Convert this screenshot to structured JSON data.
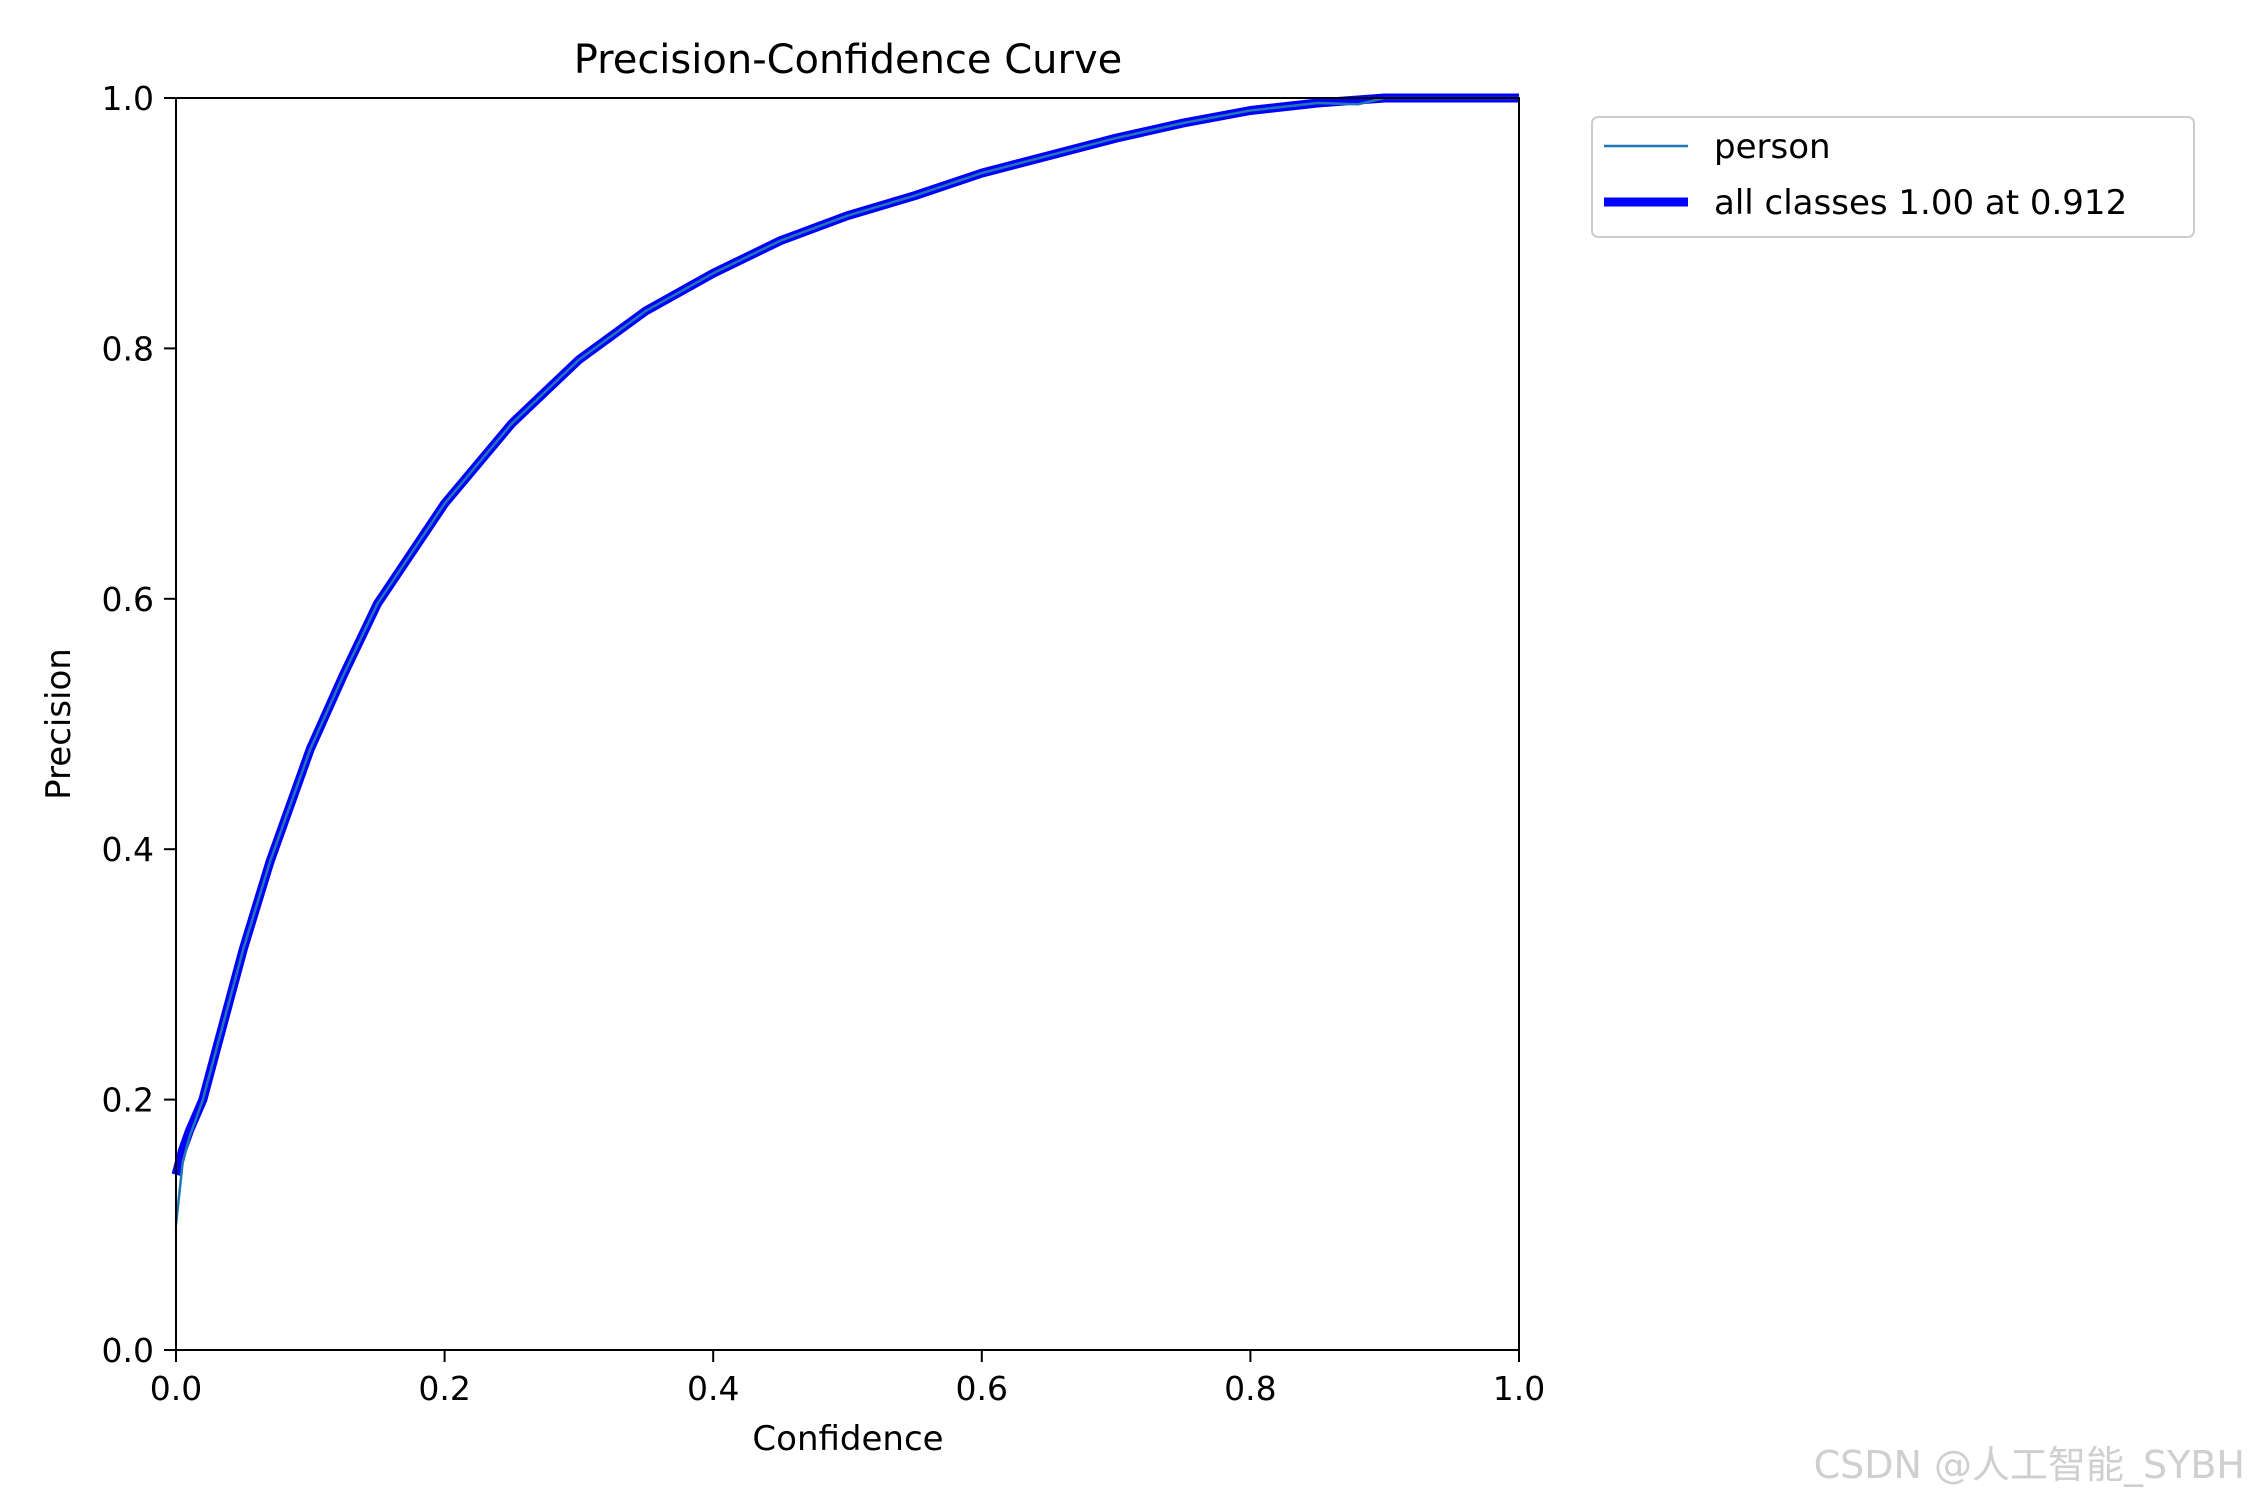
{
  "chart_data": {
    "type": "line",
    "title": "Precision-Confidence Curve",
    "xlabel": "Confidence",
    "ylabel": "Precision",
    "xlim": [
      0.0,
      1.0
    ],
    "ylim": [
      0.0,
      1.0
    ],
    "xticks": [
      "0.0",
      "0.2",
      "0.4",
      "0.6",
      "0.8",
      "1.0"
    ],
    "yticks": [
      "0.0",
      "0.2",
      "0.4",
      "0.6",
      "0.8",
      "1.0"
    ],
    "grid": false,
    "legend_position": "outside-top-right",
    "series": [
      {
        "name": "person",
        "color": "#1f77b4",
        "line": "thin",
        "x": [
          0.0,
          0.005,
          0.01,
          0.02,
          0.03,
          0.05,
          0.07,
          0.1,
          0.125,
          0.15,
          0.2,
          0.25,
          0.3,
          0.35,
          0.4,
          0.45,
          0.5,
          0.55,
          0.6,
          0.65,
          0.7,
          0.75,
          0.8,
          0.85,
          0.88,
          0.9,
          0.95,
          1.0
        ],
        "y": [
          0.1,
          0.15,
          0.17,
          0.2,
          0.24,
          0.32,
          0.39,
          0.48,
          0.54,
          0.596,
          0.676,
          0.74,
          0.791,
          0.83,
          0.86,
          0.886,
          0.906,
          0.922,
          0.94,
          0.954,
          0.968,
          0.98,
          0.99,
          0.996,
          0.995,
          1.0,
          1.0,
          1.0
        ]
      },
      {
        "name": "all classes 1.00 at 0.912",
        "color": "#0000ff",
        "line": "thick",
        "x": [
          0.0,
          0.005,
          0.01,
          0.02,
          0.03,
          0.05,
          0.07,
          0.1,
          0.125,
          0.15,
          0.2,
          0.25,
          0.3,
          0.35,
          0.4,
          0.45,
          0.5,
          0.55,
          0.6,
          0.65,
          0.7,
          0.75,
          0.8,
          0.85,
          0.9,
          0.95,
          1.0
        ],
        "y": [
          0.14,
          0.16,
          0.175,
          0.2,
          0.24,
          0.32,
          0.39,
          0.48,
          0.54,
          0.596,
          0.676,
          0.74,
          0.791,
          0.83,
          0.86,
          0.886,
          0.906,
          0.922,
          0.94,
          0.954,
          0.968,
          0.98,
          0.99,
          0.996,
          1.0,
          1.0,
          1.0
        ]
      }
    ]
  },
  "watermark": "CSDN @人工智能_SYBH"
}
